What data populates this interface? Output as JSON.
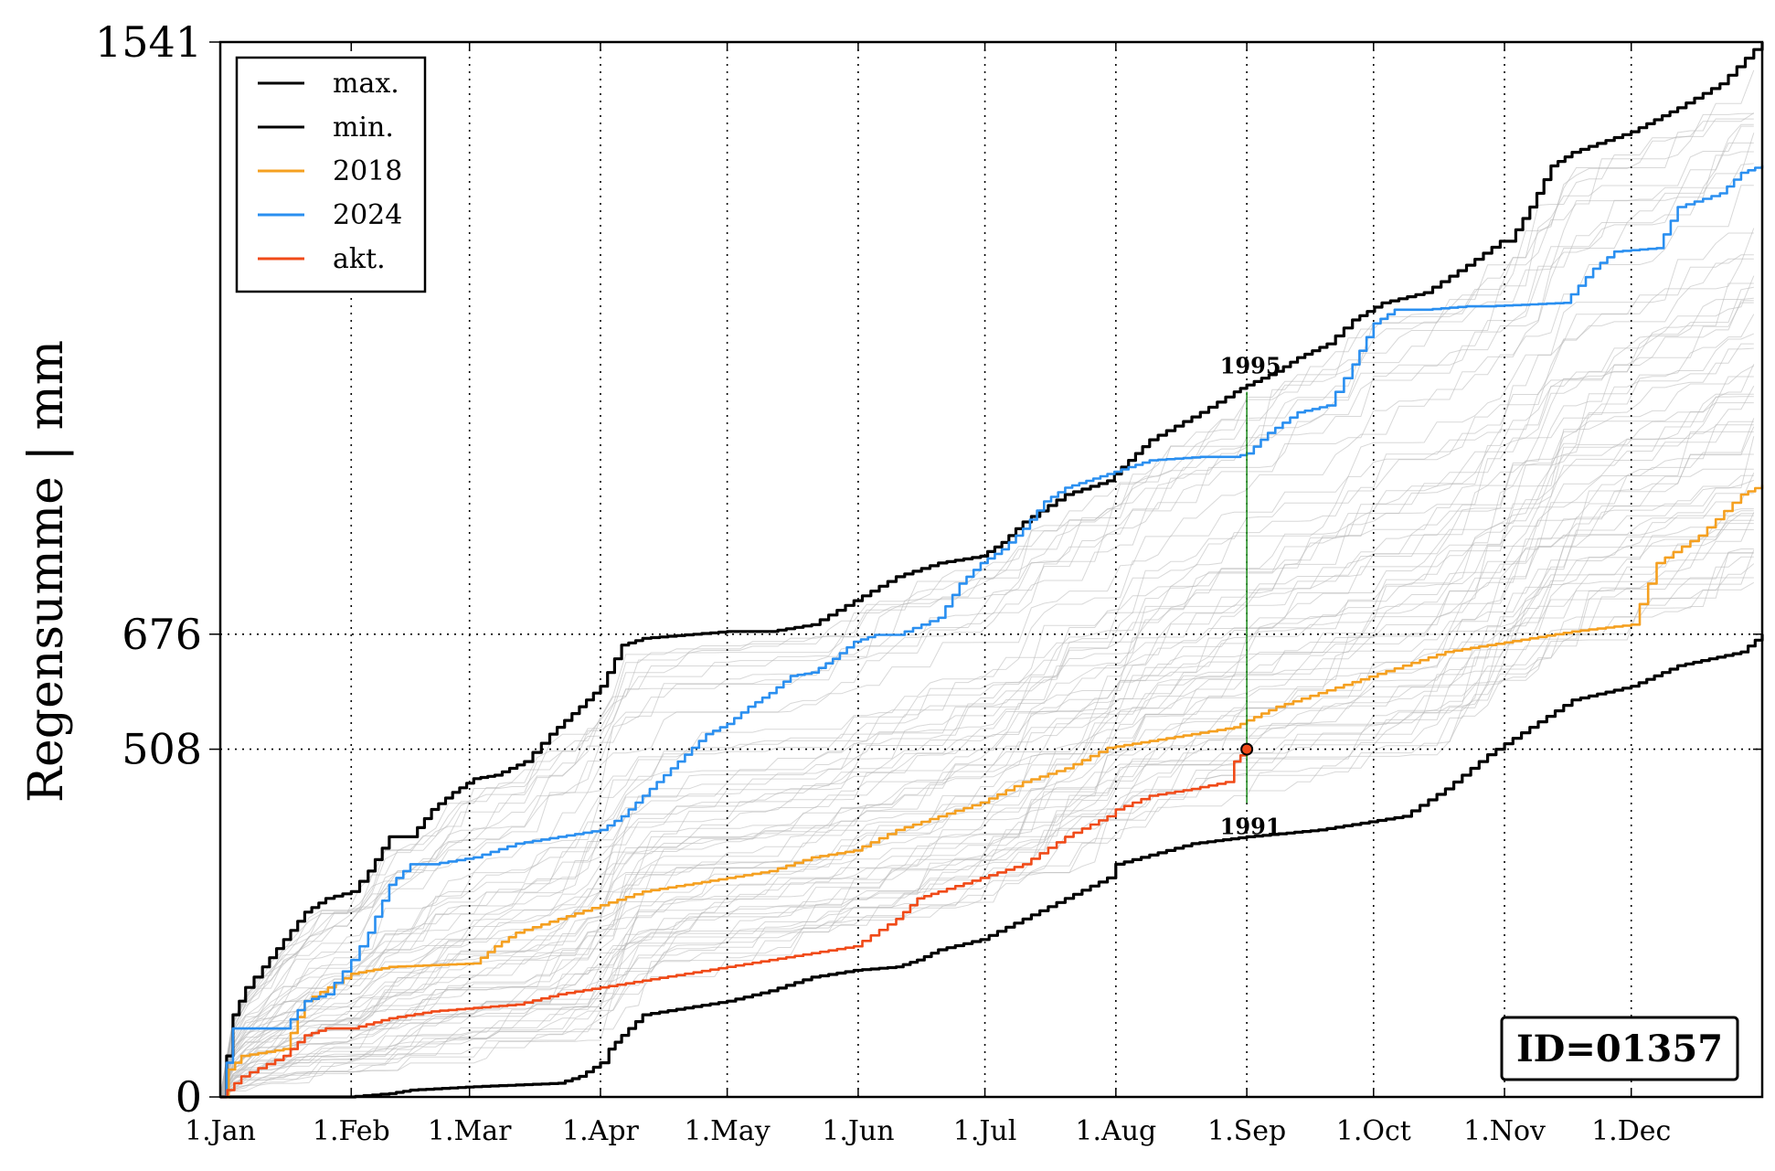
{
  "chart_data": {
    "type": "line",
    "ylabel": "Regensumme | mm",
    "xlabel": "",
    "title": "",
    "ylim": [
      0,
      1541
    ],
    "xlim_days": [
      0,
      365
    ],
    "x_ticks": [
      {
        "label": "1.Jan",
        "day": 0
      },
      {
        "label": "1.Feb",
        "day": 31
      },
      {
        "label": "1.Mar",
        "day": 59
      },
      {
        "label": "1.Apr",
        "day": 90
      },
      {
        "label": "1.May",
        "day": 120
      },
      {
        "label": "1.Jun",
        "day": 151
      },
      {
        "label": "1.Jul",
        "day": 181
      },
      {
        "label": "1.Aug",
        "day": 212
      },
      {
        "label": "1.Sep",
        "day": 243
      },
      {
        "label": "1.Oct",
        "day": 273
      },
      {
        "label": "1.Nov",
        "day": 304
      },
      {
        "label": "1.Dec",
        "day": 334
      }
    ],
    "y_ticks": [
      {
        "label": "0",
        "value": 0
      },
      {
        "label": "508",
        "value": 508
      },
      {
        "label": "676",
        "value": 676
      },
      {
        "label": "1541",
        "value": 1541
      }
    ],
    "grid": true,
    "legend_position": "top-left",
    "series": [
      {
        "name": "max.",
        "color": "#000000",
        "points": [
          [
            0,
            0
          ],
          [
            3,
            120
          ],
          [
            6,
            160
          ],
          [
            10,
            190
          ],
          [
            15,
            230
          ],
          [
            20,
            270
          ],
          [
            25,
            290
          ],
          [
            31,
            300
          ],
          [
            35,
            330
          ],
          [
            40,
            380
          ],
          [
            45,
            380
          ],
          [
            50,
            420
          ],
          [
            55,
            445
          ],
          [
            60,
            465
          ],
          [
            65,
            470
          ],
          [
            72,
            490
          ],
          [
            78,
            530
          ],
          [
            85,
            570
          ],
          [
            90,
            600
          ],
          [
            95,
            660
          ],
          [
            100,
            670
          ],
          [
            110,
            675
          ],
          [
            120,
            680
          ],
          [
            130,
            680
          ],
          [
            140,
            690
          ],
          [
            150,
            725
          ],
          [
            160,
            760
          ],
          [
            170,
            780
          ],
          [
            180,
            790
          ],
          [
            185,
            810
          ],
          [
            190,
            840
          ],
          [
            200,
            880
          ],
          [
            210,
            900
          ],
          [
            215,
            930
          ],
          [
            220,
            960
          ],
          [
            232,
            1000
          ],
          [
            240,
            1030
          ],
          [
            243,
            1040
          ],
          [
            250,
            1060
          ],
          [
            255,
            1080
          ],
          [
            262,
            1100
          ],
          [
            268,
            1135
          ],
          [
            275,
            1160
          ],
          [
            285,
            1175
          ],
          [
            295,
            1215
          ],
          [
            303,
            1250
          ],
          [
            305,
            1250
          ],
          [
            310,
            1300
          ],
          [
            315,
            1360
          ],
          [
            320,
            1380
          ],
          [
            334,
            1410
          ],
          [
            345,
            1445
          ],
          [
            355,
            1480
          ],
          [
            363,
            1530
          ],
          [
            365,
            1541
          ]
        ]
      },
      {
        "name": "min.",
        "color": "#000000",
        "points": [
          [
            0,
            0
          ],
          [
            30,
            0
          ],
          [
            40,
            5
          ],
          [
            45,
            10
          ],
          [
            60,
            15
          ],
          [
            80,
            20
          ],
          [
            85,
            30
          ],
          [
            90,
            50
          ],
          [
            92,
            70
          ],
          [
            95,
            90
          ],
          [
            100,
            120
          ],
          [
            110,
            130
          ],
          [
            120,
            140
          ],
          [
            130,
            155
          ],
          [
            140,
            175
          ],
          [
            150,
            185
          ],
          [
            160,
            190
          ],
          [
            165,
            200
          ],
          [
            170,
            215
          ],
          [
            180,
            230
          ],
          [
            190,
            260
          ],
          [
            200,
            290
          ],
          [
            210,
            320
          ],
          [
            212,
            340
          ],
          [
            218,
            350
          ],
          [
            230,
            370
          ],
          [
            243,
            380
          ],
          [
            260,
            390
          ],
          [
            270,
            400
          ],
          [
            280,
            410
          ],
          [
            290,
            450
          ],
          [
            300,
            500
          ],
          [
            310,
            540
          ],
          [
            320,
            580
          ],
          [
            334,
            600
          ],
          [
            345,
            630
          ],
          [
            360,
            650
          ],
          [
            365,
            676
          ]
        ]
      },
      {
        "name": "2018",
        "color": "#f5a020",
        "points": [
          [
            0,
            0
          ],
          [
            2,
            40
          ],
          [
            5,
            60
          ],
          [
            15,
            70
          ],
          [
            20,
            140
          ],
          [
            31,
            180
          ],
          [
            40,
            190
          ],
          [
            60,
            195
          ],
          [
            65,
            220
          ],
          [
            70,
            240
          ],
          [
            80,
            260
          ],
          [
            90,
            280
          ],
          [
            100,
            300
          ],
          [
            110,
            310
          ],
          [
            120,
            320
          ],
          [
            130,
            330
          ],
          [
            140,
            350
          ],
          [
            150,
            360
          ],
          [
            160,
            390
          ],
          [
            170,
            410
          ],
          [
            180,
            430
          ],
          [
            190,
            460
          ],
          [
            200,
            480
          ],
          [
            210,
            510
          ],
          [
            220,
            520
          ],
          [
            230,
            530
          ],
          [
            240,
            540
          ],
          [
            243,
            550
          ],
          [
            250,
            570
          ],
          [
            260,
            590
          ],
          [
            270,
            610
          ],
          [
            280,
            630
          ],
          [
            290,
            650
          ],
          [
            300,
            660
          ],
          [
            310,
            670
          ],
          [
            320,
            680
          ],
          [
            334,
            690
          ],
          [
            340,
            780
          ],
          [
            350,
            820
          ],
          [
            360,
            880
          ],
          [
            365,
            894
          ]
        ]
      },
      {
        "name": "2024",
        "color": "#2a8ff0",
        "points": [
          [
            0,
            0
          ],
          [
            3,
            100
          ],
          [
            15,
            100
          ],
          [
            20,
            140
          ],
          [
            25,
            150
          ],
          [
            31,
            200
          ],
          [
            35,
            240
          ],
          [
            40,
            310
          ],
          [
            45,
            340
          ],
          [
            50,
            340
          ],
          [
            60,
            350
          ],
          [
            70,
            370
          ],
          [
            80,
            380
          ],
          [
            90,
            390
          ],
          [
            95,
            410
          ],
          [
            100,
            440
          ],
          [
            105,
            470
          ],
          [
            110,
            500
          ],
          [
            115,
            530
          ],
          [
            120,
            545
          ],
          [
            125,
            570
          ],
          [
            130,
            590
          ],
          [
            135,
            615
          ],
          [
            140,
            620
          ],
          [
            145,
            640
          ],
          [
            150,
            665
          ],
          [
            155,
            675
          ],
          [
            160,
            675
          ],
          [
            170,
            700
          ],
          [
            175,
            750
          ],
          [
            180,
            780
          ],
          [
            185,
            800
          ],
          [
            190,
            830
          ],
          [
            195,
            870
          ],
          [
            200,
            890
          ],
          [
            205,
            900
          ],
          [
            210,
            910
          ],
          [
            215,
            920
          ],
          [
            220,
            930
          ],
          [
            232,
            935
          ],
          [
            240,
            935
          ],
          [
            243,
            940
          ],
          [
            248,
            970
          ],
          [
            255,
            1000
          ],
          [
            262,
            1010
          ],
          [
            268,
            1070
          ],
          [
            273,
            1130
          ],
          [
            278,
            1150
          ],
          [
            285,
            1150
          ],
          [
            295,
            1155
          ],
          [
            300,
            1155
          ],
          [
            318,
            1160
          ],
          [
            325,
            1210
          ],
          [
            330,
            1235
          ],
          [
            340,
            1240
          ],
          [
            345,
            1300
          ],
          [
            355,
            1320
          ],
          [
            360,
            1350
          ],
          [
            365,
            1361
          ]
        ]
      },
      {
        "name": "akt.",
        "color": "#f04a18",
        "points": [
          [
            0,
            0
          ],
          [
            5,
            30
          ],
          [
            15,
            60
          ],
          [
            20,
            90
          ],
          [
            25,
            100
          ],
          [
            31,
            100
          ],
          [
            40,
            115
          ],
          [
            50,
            125
          ],
          [
            60,
            130
          ],
          [
            70,
            135
          ],
          [
            80,
            150
          ],
          [
            90,
            160
          ],
          [
            100,
            170
          ],
          [
            110,
            180
          ],
          [
            120,
            190
          ],
          [
            130,
            200
          ],
          [
            140,
            210
          ],
          [
            150,
            220
          ],
          [
            160,
            260
          ],
          [
            165,
            290
          ],
          [
            170,
            300
          ],
          [
            180,
            320
          ],
          [
            190,
            340
          ],
          [
            200,
            380
          ],
          [
            210,
            410
          ],
          [
            212,
            420
          ],
          [
            220,
            440
          ],
          [
            230,
            450
          ],
          [
            238,
            460
          ],
          [
            240,
            490
          ],
          [
            243,
            508
          ]
        ]
      }
    ],
    "background_years_count": 60,
    "current_point": {
      "day": 243,
      "value": 508
    },
    "vertical_marker": {
      "day": 243,
      "label_top": "1995",
      "label_bottom": "1991",
      "top_value": 1030,
      "bottom_value": 440,
      "color": "#1a8a1a"
    },
    "hlines": [
      508,
      676
    ],
    "id_label": "ID=01357"
  }
}
